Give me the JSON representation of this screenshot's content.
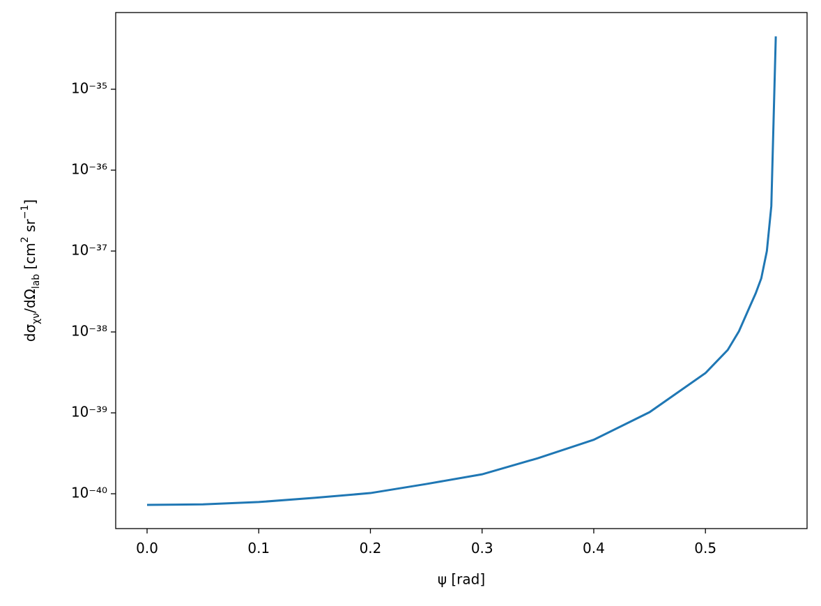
{
  "chart_data": {
    "type": "line",
    "xlabel": "ψ [rad]",
    "ylabel": [
      {
        "text": "dσ"
      },
      {
        "text": "χν",
        "shift": "sub"
      },
      {
        "text": "/dΩ"
      },
      {
        "text": "lab",
        "shift": "sub"
      },
      {
        "text": " [cm"
      },
      {
        "text": "2",
        "shift": "super"
      },
      {
        "text": " sr"
      },
      {
        "text": "−1",
        "shift": "super"
      },
      {
        "text": "]"
      }
    ],
    "x": [
      0,
      0.05,
      0.1,
      0.15,
      0.2,
      0.25,
      0.3,
      0.35,
      0.4,
      0.45,
      0.5,
      0.52,
      0.53,
      0.54,
      0.545,
      0.55,
      0.555,
      0.559,
      0.563
    ],
    "series": [
      {
        "color": "#1f77b4",
        "values": [
          7.28e-41,
          7.4e-41,
          7.9e-41,
          8.9e-41,
          1.02e-40,
          1.32e-40,
          1.74e-40,
          2.75e-40,
          4.65e-40,
          1.02e-39,
          3.1e-39,
          6e-39,
          1.02e-38,
          2.1e-38,
          3e-38,
          4.6e-38,
          1e-37,
          3.6e-37,
          4.5e-35
        ]
      }
    ],
    "xlim": [
      -0.0281,
      0.591
    ],
    "xticks": [
      {
        "value": 0,
        "label": "0.0"
      },
      0.1,
      0.2,
      0.3,
      0.4,
      0.5
    ],
    "ylim": [
      3.71e-41,
      8.87e-35
    ],
    "ylog": true,
    "yticks": [
      {
        "value": 1e-40,
        "label": "10⁻⁴⁰"
      },
      {
        "value": 1e-39,
        "label": "10⁻³⁹"
      },
      {
        "value": 1e-38,
        "label": "10⁻³⁸"
      },
      {
        "value": 1e-37,
        "label": "10⁻³⁷"
      },
      {
        "value": 1e-36,
        "label": "10⁻³⁶"
      },
      {
        "value": 1e-35,
        "label": "10⁻³⁵"
      }
    ]
  }
}
